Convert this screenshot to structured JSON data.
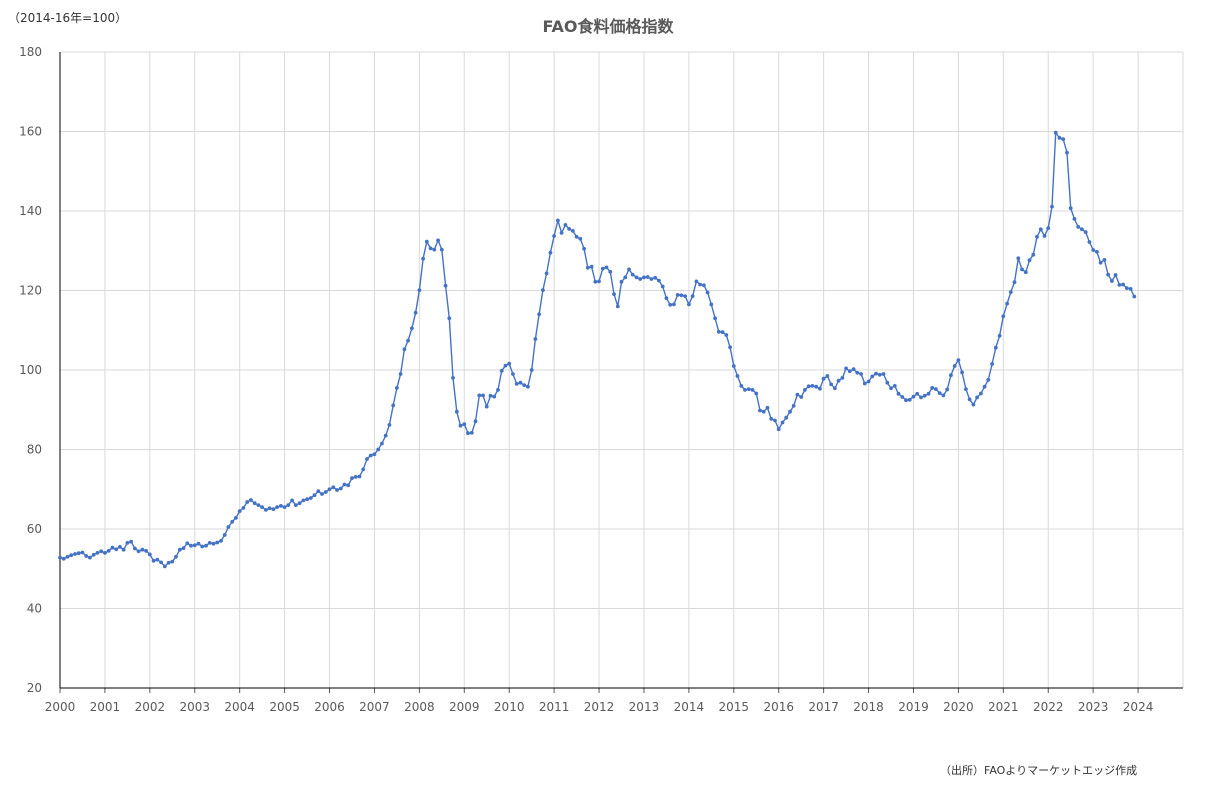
{
  "unit_note": "（2014-16年=100）",
  "source_note": "（出所）FAOよりマーケットエッジ作成",
  "chart_data": {
    "type": "line",
    "title": "FAO食料価格指数",
    "xlabel": "",
    "ylabel": "",
    "ylim": [
      20,
      180
    ],
    "yticks": [
      20,
      40,
      60,
      80,
      100,
      120,
      140,
      160,
      180
    ],
    "xlim": [
      2000,
      2025
    ],
    "xticks": [
      "2000",
      "2001",
      "2002",
      "2003",
      "2004",
      "2005",
      "2006",
      "2007",
      "2008",
      "2009",
      "2010",
      "2011",
      "2012",
      "2013",
      "2014",
      "2015",
      "2016",
      "2017",
      "2018",
      "2019",
      "2020",
      "2021",
      "2022",
      "2023",
      "2024"
    ],
    "grid": true,
    "legend": "none",
    "colors": {
      "line": "#4472C4",
      "grid": "#D9D9D9",
      "axis": "#000000"
    },
    "series": [
      {
        "start": "2000-01",
        "frequency": "monthly",
        "values": [
          52.8,
          52.5,
          53.0,
          53.4,
          53.7,
          53.9,
          54.1,
          53.2,
          52.8,
          53.5,
          54.0,
          54.4,
          54.0,
          54.5,
          55.3,
          54.9,
          55.5,
          54.8,
          56.5,
          56.8,
          55.1,
          54.4,
          54.8,
          54.5,
          53.6,
          52.0,
          52.3,
          51.6,
          50.6,
          51.5,
          51.8,
          53.0,
          54.8,
          55.2,
          56.4,
          55.8,
          55.9,
          56.3,
          55.6,
          55.8,
          56.5,
          56.3,
          56.6,
          57.0,
          58.5,
          60.5,
          61.8,
          62.8,
          64.5,
          65.3,
          66.8,
          67.3,
          66.5,
          66.0,
          65.5,
          64.8,
          65.2,
          65.0,
          65.5,
          65.8,
          65.5,
          66.0,
          67.2,
          66.0,
          66.5,
          67.2,
          67.5,
          67.8,
          68.5,
          69.5,
          68.8,
          69.3,
          70.0,
          70.5,
          69.8,
          70.2,
          71.2,
          71.0,
          72.8,
          73.1,
          73.2,
          75.0,
          77.6,
          78.5,
          78.8,
          80.0,
          81.5,
          83.5,
          86.2,
          91.1,
          95.5,
          99.0,
          105.2,
          107.4,
          110.5,
          114.4,
          120.1,
          128.0,
          132.3,
          130.6,
          130.3,
          132.6,
          130.3,
          121.2,
          113.0,
          98.0,
          89.5,
          86.0,
          86.4,
          84.1,
          84.2,
          87.1,
          93.6,
          93.6,
          90.8,
          93.5,
          93.3,
          95.0,
          99.8,
          101.1,
          101.6,
          99.0,
          96.5,
          96.8,
          96.2,
          95.8,
          100.0,
          107.8,
          114.0,
          120.1,
          124.3,
          129.5,
          133.7,
          137.6,
          134.5,
          136.5,
          135.5,
          135.0,
          133.5,
          133.0,
          130.5,
          125.7,
          126.0,
          122.2,
          122.3,
          125.5,
          125.8,
          124.7,
          119.1,
          116.0,
          122.2,
          123.3,
          125.3,
          124.0,
          123.3,
          122.9,
          123.3,
          123.4,
          122.9,
          123.2,
          122.5,
          121.0,
          118.1,
          116.4,
          116.5,
          118.9,
          118.8,
          118.6,
          116.5,
          118.6,
          122.3,
          121.5,
          121.3,
          119.5,
          116.5,
          113.0,
          109.6,
          109.5,
          108.8,
          105.7,
          101.0,
          98.5,
          96.0,
          95.0,
          95.2,
          95.0,
          94.1,
          89.8,
          89.5,
          90.5,
          87.7,
          87.3,
          85.1,
          86.8,
          88.0,
          89.5,
          91.0,
          93.8,
          93.2,
          95.0,
          95.9,
          96.0,
          95.8,
          95.3,
          97.8,
          98.5,
          96.4,
          95.4,
          97.3,
          98.0,
          100.4,
          99.7,
          100.2,
          99.3,
          99.0,
          96.6,
          97.1,
          98.4,
          99.1,
          98.8,
          99.0,
          96.8,
          95.4,
          96.0,
          94.0,
          93.2,
          92.4,
          92.5,
          93.3,
          94.0,
          93.1,
          93.5,
          94.0,
          95.5,
          95.2,
          94.2,
          93.6,
          95.1,
          98.7,
          101.0,
          102.5,
          99.4,
          95.2,
          92.6,
          91.3,
          93.1,
          94.1,
          95.8,
          97.5,
          101.5,
          105.6,
          108.6,
          113.5,
          116.7,
          119.6,
          122.1,
          128.1,
          125.3,
          124.6,
          127.6,
          129.0,
          133.5,
          135.4,
          133.7,
          135.7,
          141.1,
          159.7,
          158.4,
          158.1,
          154.7,
          140.7,
          138.0,
          136.0,
          135.4,
          134.7,
          132.2,
          130.2,
          129.7,
          127.0,
          127.7,
          124.0,
          122.4,
          123.9,
          121.4,
          121.5,
          120.6,
          120.4,
          118.5
        ]
      }
    ]
  }
}
